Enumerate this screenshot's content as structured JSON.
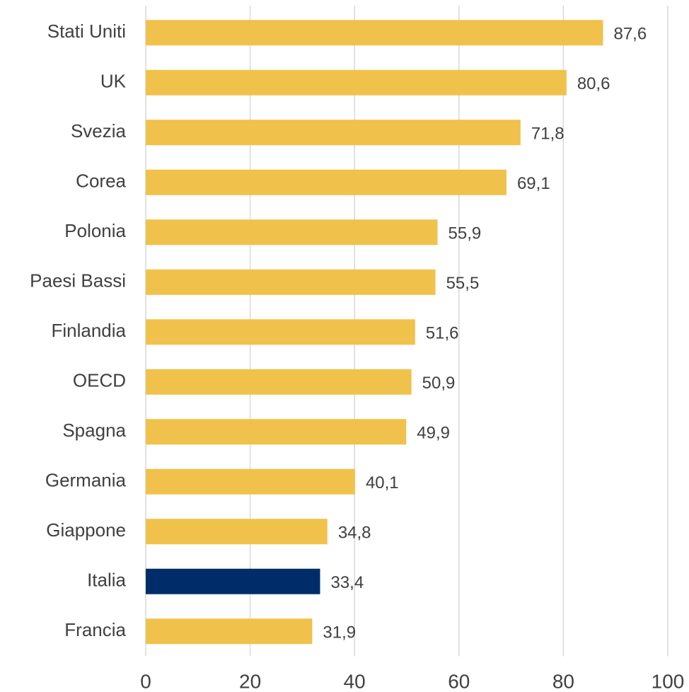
{
  "chart_data": {
    "type": "barh",
    "categories": [
      "Stati Uniti",
      "UK",
      "Svezia",
      "Corea",
      "Polonia",
      "Paesi Bassi",
      "Finlandia",
      "OECD",
      "Spagna",
      "Germania",
      "Giappone",
      "Italia",
      "Francia"
    ],
    "values": [
      87.6,
      80.6,
      71.8,
      69.1,
      55.9,
      55.5,
      51.6,
      50.9,
      49.9,
      40.1,
      34.8,
      33.4,
      31.9
    ],
    "value_labels": [
      "87,6",
      "80,6",
      "71,8",
      "69,1",
      "55,9",
      "55,5",
      "51,6",
      "50,9",
      "49,9",
      "40,1",
      "34,8",
      "33,4",
      "31,9"
    ],
    "colors": [
      "#f0c24b",
      "#f0c24b",
      "#f0c24b",
      "#f0c24b",
      "#f0c24b",
      "#f0c24b",
      "#f0c24b",
      "#f0c24b",
      "#f0c24b",
      "#f0c24b",
      "#f0c24b",
      "#002d6a",
      "#f0c24b"
    ],
    "xlim": [
      0,
      100
    ],
    "xticks": [
      0,
      20,
      40,
      60,
      80,
      100
    ],
    "grid": true
  }
}
